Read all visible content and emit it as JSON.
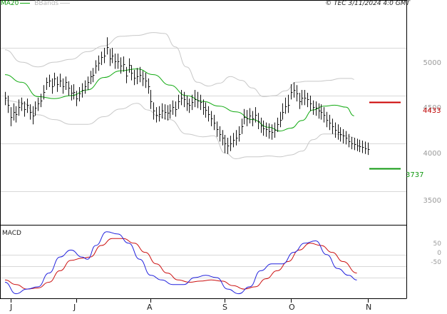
{
  "header": {
    "legend_ma": "MA20",
    "legend_bb": "BBands",
    "timestamp": "© TEC 3/11/2024 4:0 GMT"
  },
  "colors": {
    "price": "#111111",
    "ma": "#11aa11",
    "bands": "#c8c8c8",
    "resistance": "#cc0000",
    "support": "#119911",
    "macd": "#2222dd",
    "signal": "#cc1111",
    "grid": "#d8d8d8",
    "frame": "#000000"
  },
  "chart_data": [
    {
      "type": "line",
      "panel": "price",
      "title": "",
      "ylim": [
        3150,
        5500
      ],
      "y_ticks": [
        {
          "value": 5000,
          "label": "5000"
        },
        {
          "value": 4500,
          "label": "4500"
        },
        {
          "value": 4000,
          "label": "4000"
        },
        {
          "value": 3500,
          "label": "3500"
        }
      ],
      "x_ticks": [
        {
          "index": 2,
          "label": "J"
        },
        {
          "index": 26,
          "label": "J"
        },
        {
          "index": 53,
          "label": "A"
        },
        {
          "index": 80,
          "label": "S"
        },
        {
          "index": 104,
          "label": "O"
        },
        {
          "index": 132,
          "label": "N"
        }
      ],
      "levels": [
        {
          "name": "resistance",
          "value": 4433,
          "label": "4433"
        },
        {
          "name": "support",
          "value": 3737,
          "label": "3737"
        }
      ],
      "series": [
        {
          "name": "Price",
          "kind": "hlc",
          "close": [
            4480,
            4400,
            4280,
            4330,
            4310,
            4380,
            4420,
            4360,
            4400,
            4330,
            4290,
            4370,
            4420,
            4450,
            4540,
            4640,
            4660,
            4600,
            4680,
            4620,
            4660,
            4600,
            4640,
            4580,
            4530,
            4540,
            4470,
            4520,
            4560,
            4600,
            4640,
            4700,
            4720,
            4810,
            4840,
            4900,
            4920,
            5010,
            4890,
            4920,
            4860,
            4860,
            4810,
            4830,
            4710,
            4820,
            4740,
            4690,
            4700,
            4720,
            4680,
            4660,
            4600,
            4440,
            4340,
            4300,
            4310,
            4340,
            4330,
            4320,
            4340,
            4380,
            4360,
            4440,
            4480,
            4460,
            4420,
            4400,
            4430,
            4460,
            4450,
            4430,
            4380,
            4350,
            4310,
            4260,
            4220,
            4150,
            4100,
            4060,
            4000,
            3980,
            4000,
            4040,
            4060,
            4100,
            4180,
            4280,
            4260,
            4290,
            4260,
            4300,
            4230,
            4190,
            4160,
            4150,
            4130,
            4120,
            4140,
            4200,
            4250,
            4330,
            4390,
            4400,
            4540,
            4560,
            4520,
            4440,
            4480,
            4480,
            4460,
            4420,
            4380,
            4370,
            4340,
            4330,
            4300,
            4250,
            4220,
            4180,
            4140,
            4120,
            4100,
            4080,
            4060,
            4020,
            4000,
            3990,
            3980,
            3970,
            3960,
            3950,
            3940
          ],
          "high": [
            4540,
            4500,
            4380,
            4420,
            4390,
            4460,
            4480,
            4440,
            4470,
            4410,
            4390,
            4440,
            4480,
            4520,
            4610,
            4690,
            4720,
            4680,
            4740,
            4700,
            4730,
            4680,
            4700,
            4650,
            4610,
            4620,
            4550,
            4590,
            4630,
            4660,
            4700,
            4760,
            4790,
            4870,
            4920,
            4960,
            5000,
            5110,
            4990,
            5000,
            4940,
            4940,
            4900,
            4910,
            4800,
            4890,
            4820,
            4770,
            4790,
            4800,
            4760,
            4740,
            4680,
            4560,
            4430,
            4380,
            4390,
            4420,
            4410,
            4400,
            4410,
            4450,
            4440,
            4510,
            4560,
            4540,
            4500,
            4470,
            4510,
            4560,
            4540,
            4510,
            4460,
            4430,
            4390,
            4340,
            4300,
            4230,
            4180,
            4140,
            4090,
            4060,
            4080,
            4110,
            4140,
            4180,
            4260,
            4360,
            4350,
            4370,
            4340,
            4380,
            4320,
            4270,
            4240,
            4220,
            4210,
            4200,
            4220,
            4270,
            4330,
            4420,
            4480,
            4510,
            4620,
            4640,
            4610,
            4530,
            4560,
            4560,
            4530,
            4500,
            4450,
            4440,
            4420,
            4410,
            4380,
            4330,
            4300,
            4260,
            4220,
            4200,
            4170,
            4150,
            4130,
            4100,
            4070,
            4060,
            4050,
            4040,
            4030,
            4020,
            4010
          ],
          "low": [
            4400,
            4320,
            4180,
            4240,
            4220,
            4290,
            4340,
            4280,
            4320,
            4250,
            4200,
            4290,
            4340,
            4380,
            4460,
            4560,
            4590,
            4520,
            4600,
            4540,
            4590,
            4520,
            4560,
            4500,
            4450,
            4460,
            4390,
            4440,
            4480,
            4520,
            4560,
            4620,
            4640,
            4730,
            4760,
            4820,
            4840,
            4930,
            4810,
            4840,
            4780,
            4780,
            4730,
            4750,
            4630,
            4740,
            4660,
            4610,
            4620,
            4640,
            4600,
            4580,
            4520,
            4360,
            4250,
            4220,
            4230,
            4260,
            4250,
            4240,
            4260,
            4300,
            4280,
            4360,
            4400,
            4380,
            4340,
            4320,
            4350,
            4380,
            4370,
            4350,
            4300,
            4270,
            4230,
            4180,
            4140,
            4070,
            4020,
            3980,
            3900,
            3890,
            3920,
            3960,
            3980,
            4020,
            4100,
            4200,
            4180,
            4210,
            4180,
            4220,
            4150,
            4110,
            4080,
            4070,
            4050,
            4040,
            4060,
            4120,
            4170,
            4250,
            4310,
            4320,
            4460,
            4480,
            4440,
            4360,
            4400,
            4400,
            4380,
            4340,
            4300,
            4290,
            4260,
            4250,
            4220,
            4170,
            4140,
            4100,
            4060,
            4040,
            4020,
            4000,
            3990,
            3960,
            3940,
            3930,
            3920,
            3910,
            3900,
            3890,
            3880
          ]
        },
        {
          "name": "MA20",
          "kind": "line",
          "knots": [
            [
              0,
              4720
            ],
            [
              6,
              4640
            ],
            [
              12,
              4490
            ],
            [
              18,
              4470
            ],
            [
              24,
              4500
            ],
            [
              30,
              4560
            ],
            [
              36,
              4690
            ],
            [
              42,
              4760
            ],
            [
              48,
              4780
            ],
            [
              54,
              4720
            ],
            [
              60,
              4610
            ],
            [
              66,
              4500
            ],
            [
              72,
              4440
            ],
            [
              78,
              4390
            ],
            [
              84,
              4330
            ],
            [
              90,
              4250
            ],
            [
              96,
              4170
            ],
            [
              100,
              4130
            ],
            [
              104,
              4160
            ],
            [
              108,
              4240
            ],
            [
              112,
              4350
            ],
            [
              116,
              4390
            ],
            [
              120,
              4400
            ],
            [
              124,
              4380
            ],
            [
              127,
              4290
            ]
          ]
        },
        {
          "name": "BBands upper",
          "kind": "line",
          "knots": [
            [
              0,
              4980
            ],
            [
              6,
              4850
            ],
            [
              12,
              4800
            ],
            [
              18,
              4850
            ],
            [
              24,
              4880
            ],
            [
              30,
              4960
            ],
            [
              36,
              5020
            ],
            [
              42,
              5120
            ],
            [
              48,
              5130
            ],
            [
              54,
              5160
            ],
            [
              58,
              5150
            ],
            [
              62,
              5010
            ],
            [
              66,
              4800
            ],
            [
              70,
              4640
            ],
            [
              74,
              4600
            ],
            [
              78,
              4630
            ],
            [
              82,
              4700
            ],
            [
              86,
              4660
            ],
            [
              90,
              4580
            ],
            [
              94,
              4490
            ],
            [
              98,
              4500
            ],
            [
              102,
              4550
            ],
            [
              106,
              4640
            ],
            [
              110,
              4650
            ],
            [
              114,
              4650
            ],
            [
              118,
              4660
            ],
            [
              122,
              4680
            ],
            [
              126,
              4680
            ],
            [
              127,
              4670
            ]
          ]
        },
        {
          "name": "BBands lower",
          "kind": "line",
          "knots": [
            [
              0,
              4450
            ],
            [
              6,
              4430
            ],
            [
              12,
              4300
            ],
            [
              18,
              4250
            ],
            [
              24,
              4200
            ],
            [
              30,
              4200
            ],
            [
              36,
              4280
            ],
            [
              42,
              4360
            ],
            [
              48,
              4420
            ],
            [
              52,
              4350
            ],
            [
              56,
              4280
            ],
            [
              60,
              4250
            ],
            [
              66,
              4100
            ],
            [
              72,
              4070
            ],
            [
              76,
              4080
            ],
            [
              80,
              3900
            ],
            [
              84,
              3840
            ],
            [
              88,
              3860
            ],
            [
              92,
              3860
            ],
            [
              96,
              3870
            ],
            [
              100,
              3860
            ],
            [
              104,
              3880
            ],
            [
              108,
              3920
            ],
            [
              112,
              4040
            ],
            [
              116,
              4100
            ],
            [
              120,
              4100
            ],
            [
              124,
              4080
            ],
            [
              127,
              4060
            ]
          ]
        }
      ]
    },
    {
      "type": "line",
      "panel": "macd",
      "title": "MACD",
      "ylim": [
        -140,
        180
      ],
      "y_ticks": [
        {
          "value": 50,
          "label": "50"
        },
        {
          "value": 0,
          "label": "0"
        },
        {
          "value": -50,
          "label": "-50"
        }
      ],
      "series": [
        {
          "name": "MACD",
          "knots": [
            [
              0,
              -70
            ],
            [
              4,
              -120
            ],
            [
              8,
              -100
            ],
            [
              12,
              -90
            ],
            [
              16,
              -30
            ],
            [
              20,
              40
            ],
            [
              24,
              70
            ],
            [
              28,
              40
            ],
            [
              30,
              30
            ],
            [
              33,
              90
            ],
            [
              37,
              150
            ],
            [
              41,
              140
            ],
            [
              45,
              100
            ],
            [
              49,
              30
            ],
            [
              53,
              -40
            ],
            [
              57,
              -60
            ],
            [
              61,
              -80
            ],
            [
              65,
              -80
            ],
            [
              69,
              -50
            ],
            [
              73,
              -40
            ],
            [
              77,
              -50
            ],
            [
              81,
              -100
            ],
            [
              85,
              -120
            ],
            [
              89,
              -90
            ],
            [
              93,
              -20
            ],
            [
              97,
              10
            ],
            [
              101,
              10
            ],
            [
              105,
              60
            ],
            [
              109,
              100
            ],
            [
              113,
              110
            ],
            [
              117,
              50
            ],
            [
              121,
              -10
            ],
            [
              125,
              -40
            ],
            [
              128,
              -60
            ]
          ]
        },
        {
          "name": "Signal",
          "knots": [
            [
              0,
              -60
            ],
            [
              4,
              -80
            ],
            [
              8,
              -100
            ],
            [
              12,
              -95
            ],
            [
              16,
              -70
            ],
            [
              20,
              -20
            ],
            [
              24,
              25
            ],
            [
              28,
              35
            ],
            [
              31,
              40
            ],
            [
              35,
              90
            ],
            [
              39,
              120
            ],
            [
              43,
              120
            ],
            [
              47,
              100
            ],
            [
              51,
              60
            ],
            [
              55,
              10
            ],
            [
              59,
              -30
            ],
            [
              63,
              -60
            ],
            [
              67,
              -70
            ],
            [
              71,
              -65
            ],
            [
              75,
              -60
            ],
            [
              79,
              -65
            ],
            [
              83,
              -85
            ],
            [
              87,
              -100
            ],
            [
              91,
              -90
            ],
            [
              95,
              -55
            ],
            [
              99,
              -20
            ],
            [
              103,
              20
            ],
            [
              107,
              70
            ],
            [
              111,
              100
            ],
            [
              115,
              90
            ],
            [
              119,
              60
            ],
            [
              123,
              20
            ],
            [
              128,
              -30
            ]
          ]
        }
      ]
    }
  ]
}
